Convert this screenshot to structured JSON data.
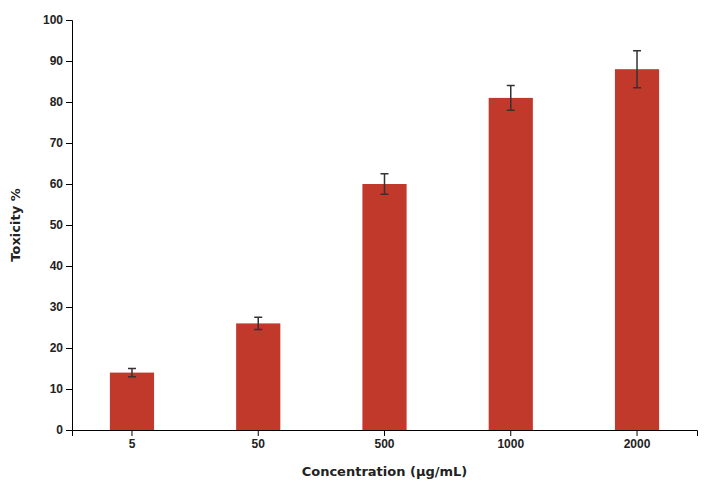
{
  "chart_data": {
    "type": "bar",
    "xlabel": "Concentration (μg/mL)",
    "ylabel": "Toxicity %",
    "categories": [
      "5",
      "50",
      "500",
      "1000",
      "2000"
    ],
    "values": [
      14,
      26,
      60,
      81,
      88
    ],
    "errors": [
      1.0,
      1.5,
      2.5,
      3.0,
      4.5
    ],
    "color": "#C0392B",
    "ylim": [
      0,
      100
    ],
    "yticks": [
      0,
      10,
      20,
      30,
      40,
      50,
      60,
      70,
      80,
      90,
      100
    ],
    "grid": false
  }
}
